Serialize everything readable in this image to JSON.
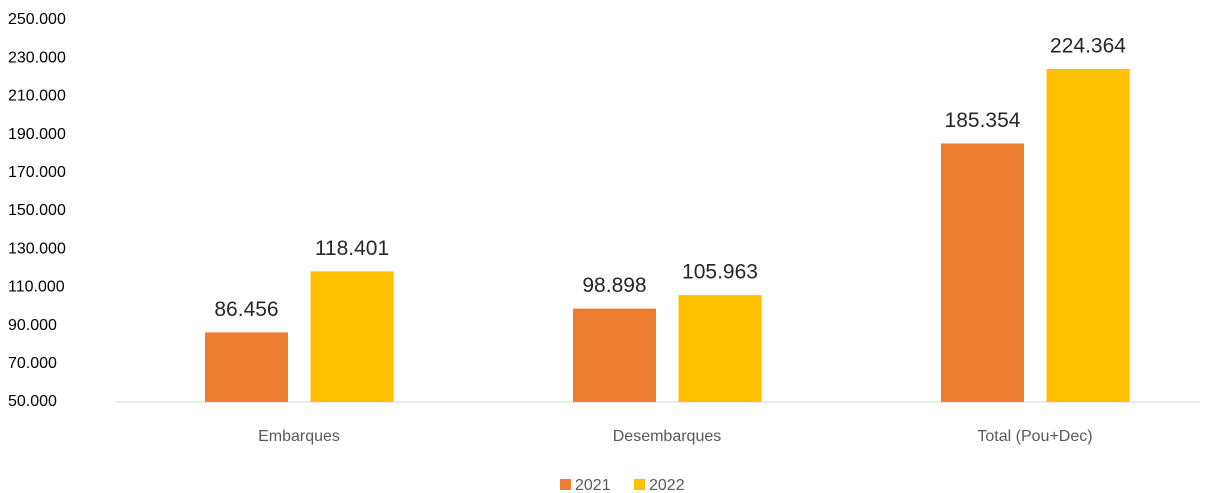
{
  "chart_data": {
    "type": "bar",
    "categories": [
      "Embarques",
      "Desembarques",
      "Total (Pou+Dec)"
    ],
    "series": [
      {
        "name": "2021",
        "color": "#ed7d31",
        "values": [
          86456,
          98898,
          185354
        ],
        "value_labels": [
          "86.456",
          "98.898",
          "185.354"
        ]
      },
      {
        "name": "2022",
        "color": "#ffc000",
        "values": [
          118401,
          105963,
          224364
        ],
        "value_labels": [
          "118.401",
          "105.963",
          "224.364"
        ]
      }
    ],
    "ylim": [
      50000,
      250000
    ],
    "yticks": [
      {
        "value": 50000,
        "label": "50.000"
      },
      {
        "value": 70000,
        "label": "70.000"
      },
      {
        "value": 90000,
        "label": "90.000"
      },
      {
        "value": 110000,
        "label": "110.000"
      },
      {
        "value": 130000,
        "label": "130.000"
      },
      {
        "value": 150000,
        "label": "150.000"
      },
      {
        "value": 170000,
        "label": "170.000"
      },
      {
        "value": 190000,
        "label": "190.000"
      },
      {
        "value": 210000,
        "label": "210.000"
      },
      {
        "value": 230000,
        "label": "230.000"
      },
      {
        "value": 250000,
        "label": "250.000"
      }
    ],
    "grid": false,
    "legend": "bottom"
  }
}
